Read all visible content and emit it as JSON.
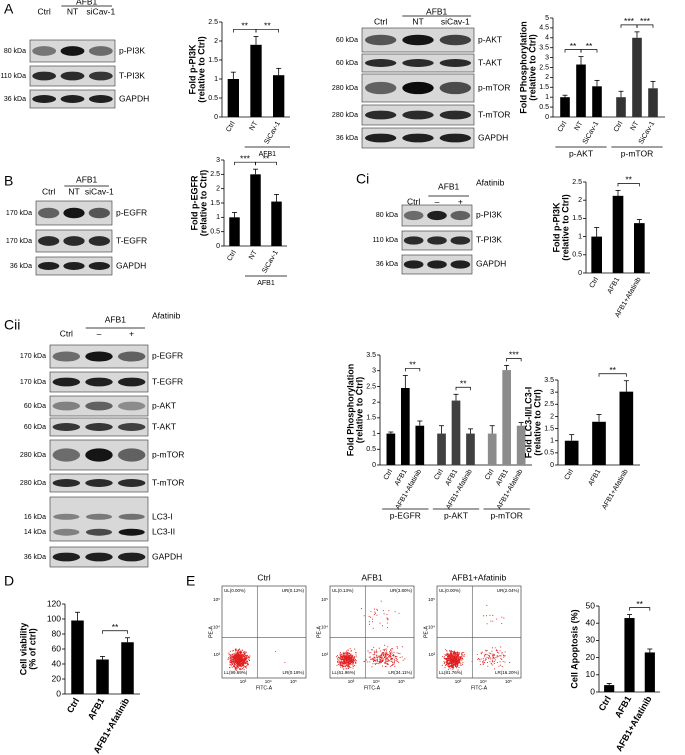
{
  "panel_labels": [
    "A",
    "B",
    "Ci",
    "Cii",
    "D",
    "E"
  ],
  "blots": [
    {
      "header": "AFB1",
      "lanes": [
        "Ctrl",
        "NT",
        "siCav-1"
      ],
      "rows": [
        {
          "kda": "80 kDa",
          "protein": "p-PI3K"
        },
        {
          "kda": "110 kDa",
          "protein": "T-PI3K"
        },
        {
          "kda": "36 kDa",
          "protein": "GAPDH"
        }
      ]
    },
    {
      "header": "AFB1",
      "lanes": [
        "Ctrl",
        "NT",
        "siCav-1"
      ],
      "rows": [
        {
          "kda": "60 kDa",
          "protein": "p-AKT"
        },
        {
          "kda": "60 kDa",
          "protein": "T-AKT"
        },
        {
          "kda": "280 kDa",
          "protein": "p-mTOR"
        },
        {
          "kda": "280 kDa",
          "protein": "T-mTOR"
        },
        {
          "kda": "36 kDa",
          "protein": "GAPDH"
        }
      ]
    },
    {
      "header": "AFB1",
      "lanes": [
        "Ctrl",
        "NT",
        "siCav-1"
      ],
      "rows": [
        {
          "kda": "170 kDa",
          "protein": "p-EGFR"
        },
        {
          "kda": "170 kDa",
          "protein": "T-EGFR"
        },
        {
          "kda": "36 kDa",
          "protein": "GAPDH"
        }
      ]
    },
    {
      "header": "AFB1",
      "treatment": "Afatinib",
      "lanes": [
        "Ctrl",
        "–",
        "+"
      ],
      "rows": [
        {
          "kda": "80 kDa",
          "protein": "p-PI3K"
        },
        {
          "kda": "110 kDa",
          "protein": "T-PI3K"
        },
        {
          "kda": "36 kDa",
          "protein": "GAPDH"
        }
      ]
    },
    {
      "header": "AFB1",
      "treatment": "Afatinib",
      "lanes": [
        "Ctrl",
        "–",
        "+"
      ],
      "rows": [
        {
          "kda": "170 kDa",
          "protein": "p-EGFR"
        },
        {
          "kda": "170 kDa",
          "protein": "T-EGFR"
        },
        {
          "kda": "60 kDa",
          "protein": "p-AKT"
        },
        {
          "kda": "60 kDa",
          "protein": "T-AKT"
        },
        {
          "kda": "280 kDa",
          "protein": "p-mTOR"
        },
        {
          "kda": "280 kDa",
          "protein": "T-mTOR"
        },
        {
          "kda": "16 kDa",
          "protein": "LC3-I"
        },
        {
          "kda": "14 kDa",
          "protein": "LC3-II"
        },
        {
          "kda": "36 kDa",
          "protein": "GAPDH"
        }
      ]
    }
  ],
  "chart_data": [
    {
      "type": "bar",
      "ylabel": [
        "Fold p-PI3K",
        "(relative to Ctrl)"
      ],
      "categories": [
        "Ctrl",
        "NT",
        "SiCav-1"
      ],
      "values": [
        1,
        1.9,
        1.1
      ],
      "errors": [
        0.18,
        0.22,
        0.18
      ],
      "color": "#000000",
      "ylim": [
        0,
        2.5
      ],
      "yticks": [
        0,
        0.5,
        1,
        1.5,
        2,
        2.5
      ],
      "bracket": {
        "label": "AFB1",
        "from": 1,
        "to": 2
      },
      "significance": [
        {
          "text": "**",
          "from": 0,
          "to": 1
        },
        {
          "text": "**",
          "from": 1,
          "to": 2
        }
      ]
    },
    {
      "type": "grouped_bar",
      "ylabel": [
        "Fold Phosphorylation",
        "(relative to Ctrl)"
      ],
      "categories": [
        "Ctrl",
        "NT",
        "SiCav-1"
      ],
      "groups": [
        {
          "name": "p-AKT",
          "color": "#000000",
          "values": [
            1,
            2.65,
            1.55
          ],
          "errors": [
            0.1,
            0.4,
            0.3
          ]
        },
        {
          "name": "p-mTOR",
          "color": "#333333",
          "values": [
            1,
            4,
            1.45
          ],
          "errors": [
            0.3,
            0.3,
            0.35
          ]
        }
      ],
      "ylim": [
        0,
        5
      ],
      "yticks": [
        0,
        0.5,
        1,
        1.5,
        2,
        2.5,
        3,
        3.5,
        4,
        4.5,
        5
      ],
      "significance": [
        {
          "text": "**",
          "group": 0,
          "from": 0,
          "to": 1
        },
        {
          "text": "**",
          "group": 0,
          "from": 1,
          "to": 2
        },
        {
          "text": "***",
          "group": 1,
          "from": 0,
          "to": 1
        },
        {
          "text": "***",
          "group": 1,
          "from": 1,
          "to": 2
        }
      ]
    },
    {
      "type": "bar",
      "ylabel": [
        "Fold p-EGFR",
        "(relative to Ctrl)"
      ],
      "categories": [
        "Ctrl",
        "NT",
        "SiCav-1"
      ],
      "values": [
        1,
        2.5,
        1.55
      ],
      "errors": [
        0.17,
        0.18,
        0.25
      ],
      "color": "#000000",
      "ylim": [
        0,
        3
      ],
      "yticks": [
        0,
        0.5,
        1,
        1.5,
        2,
        2.5,
        3
      ],
      "bracket": {
        "label": "AFB1",
        "from": 1,
        "to": 2
      },
      "significance": [
        {
          "text": "***",
          "from": 0,
          "to": 1
        },
        {
          "text": "**",
          "from": 1,
          "to": 2
        }
      ]
    },
    {
      "type": "bar",
      "ylabel": [
        "Fold p-PI3K",
        "(relative to Ctrl)"
      ],
      "categories": [
        "Ctrl",
        "AFB1",
        "AFB1+Afatinib"
      ],
      "values": [
        1,
        2.12,
        1.37
      ],
      "errors": [
        0.25,
        0.15,
        0.1
      ],
      "color": "#000000",
      "ylim": [
        0,
        2.5
      ],
      "yticks": [
        0,
        0.5,
        1,
        1.5,
        2,
        2.5
      ],
      "significance": [
        {
          "text": "**",
          "from": 1,
          "to": 2
        }
      ]
    },
    {
      "type": "grouped_bar",
      "ylabel": [
        "Fold Phosphorylation",
        "(relative to Ctrl)"
      ],
      "categories": [
        "Ctrl",
        "AFB1",
        "AFB1+Afatinib"
      ],
      "groups": [
        {
          "name": "p-EGFR",
          "color": "#000000",
          "values": [
            1,
            2.45,
            1.25
          ],
          "errors": [
            0.05,
            0.4,
            0.15
          ]
        },
        {
          "name": "p-AKT",
          "color": "#404040",
          "values": [
            1,
            2.05,
            1.0
          ],
          "errors": [
            0.25,
            0.2,
            0.15
          ]
        },
        {
          "name": "p-mTOR",
          "color": "#8c8c8c",
          "values": [
            1,
            3.02,
            1.25
          ],
          "errors": [
            0.25,
            0.15,
            0.1
          ]
        }
      ],
      "ylim": [
        0,
        3.5
      ],
      "yticks": [
        0,
        0.5,
        1,
        1.5,
        2,
        2.5,
        3,
        3.5
      ],
      "significance": [
        {
          "text": "**",
          "group": 0,
          "from": 1,
          "to": 2
        },
        {
          "text": "**",
          "group": 1,
          "from": 1,
          "to": 2
        },
        {
          "text": "***",
          "group": 2,
          "from": 1,
          "to": 2
        }
      ]
    },
    {
      "type": "bar",
      "ylabel": [
        "Fold LC3-II/LC3-I",
        "(relative to Ctrl)"
      ],
      "categories": [
        "Ctrl",
        "AFB1",
        "AFB1+Afatinib"
      ],
      "values": [
        1,
        1.78,
        3.02
      ],
      "errors": [
        0.25,
        0.3,
        0.45
      ],
      "color": "#000000",
      "ylim": [
        0,
        3.5
      ],
      "yticks": [
        0,
        0.5,
        1,
        1.5,
        2,
        2.5,
        3,
        3.5
      ],
      "significance": [
        {
          "text": "**",
          "from": 1,
          "to": 2
        }
      ]
    },
    {
      "type": "bar",
      "ylabel": [
        "Cell viability",
        "(% of ctrl)"
      ],
      "categories": [
        "Ctrl",
        "AFB1",
        "AFB1+Afatinib"
      ],
      "values": [
        98,
        46,
        69
      ],
      "errors": [
        11,
        4,
        6
      ],
      "color": "#000000",
      "ylim": [
        0,
        120
      ],
      "yticks": [
        0,
        20,
        40,
        60,
        80,
        100,
        120
      ],
      "significance": [
        {
          "text": "**",
          "from": 1,
          "to": 2
        }
      ]
    },
    {
      "type": "bar",
      "ylabel": [
        "Cell Apoptosis (%)"
      ],
      "categories": [
        "Ctrl",
        "AFB1",
        "AFB1+Afatinib"
      ],
      "values": [
        4,
        43,
        23
      ],
      "errors": [
        1,
        2,
        2
      ],
      "color": "#000000",
      "ylim": [
        0,
        50
      ],
      "yticks": [
        0,
        10,
        20,
        30,
        40,
        50
      ],
      "significance": [
        {
          "text": "**",
          "from": 1,
          "to": 2
        }
      ]
    }
  ],
  "flow": {
    "xlabel": "FITC-A",
    "ylabel": "PE-A",
    "xtick_labels": [
      "10³",
      "10⁴",
      "10⁵"
    ],
    "ytick_labels": [
      "10³",
      "10⁴",
      "10⁵"
    ],
    "plots": [
      {
        "title": "Ctrl",
        "UL": "UL(0.00%)",
        "UR": "UR(0.12%)",
        "LL": "LL(99.69%)",
        "LR": "LR(0.18%)"
      },
      {
        "title": "AFB1",
        "UL": "UL(0.13%)",
        "UR": "UR(3.80%)",
        "LL": "LL(61.96%)",
        "LR": "LR(34.11%)"
      },
      {
        "title": "AFB1+Afatinib",
        "UL": "UL(0.00%)",
        "UR": "UR(2.04%)",
        "LL": "LL(81.76%)",
        "LR": "LR(16.20%)"
      }
    ]
  }
}
